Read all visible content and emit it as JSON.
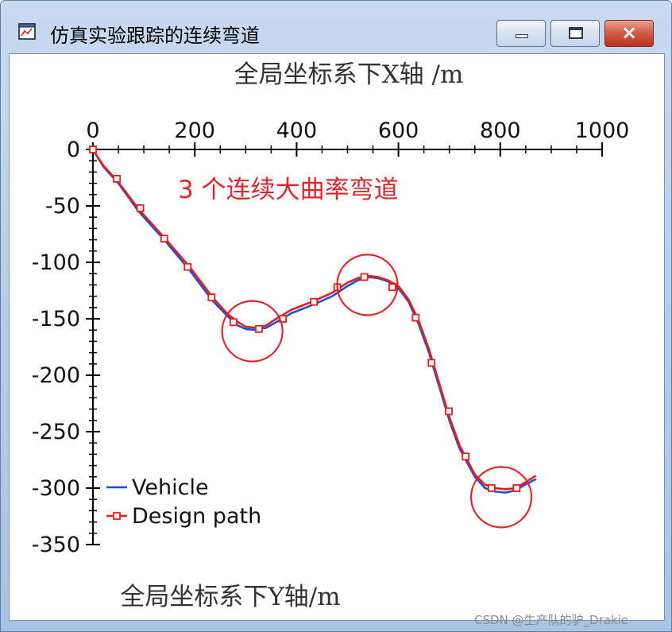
{
  "window": {
    "title": "仿真实验跟踪的连续弯道",
    "icon": "chart-window-icon",
    "controls": {
      "minimize": "minimize-icon",
      "maximize": "maximize-icon",
      "close": "×"
    }
  },
  "watermark": "CSDN @生产队的驴_Drakie",
  "chart_data": {
    "type": "line",
    "title": "",
    "xlabel": "全局坐标系下X轴 /m",
    "ylabel": "全局坐标系下Y轴/m",
    "annotation": "3 个连续大曲率弯道",
    "xlim": [
      0,
      1000
    ],
    "ylim": [
      -350,
      0
    ],
    "x_ticks": [
      0,
      200,
      400,
      600,
      800,
      1000
    ],
    "x_tick_labels": [
      "0",
      "200",
      "400",
      "600",
      "800",
      "1000"
    ],
    "y_ticks": [
      0,
      -50,
      -100,
      -150,
      -200,
      -250,
      -300,
      -350
    ],
    "y_tick_labels": [
      "0",
      "-50",
      "-100",
      "-150",
      "-200",
      "-250",
      "-300",
      "-350"
    ],
    "legend_position": "bottom-left",
    "series": [
      {
        "name": "Vehicle",
        "color": "#1f4fd8",
        "marker": "none",
        "x": [
          0,
          20,
          50,
          90,
          140,
          190,
          235,
          265,
          285,
          300,
          320,
          340,
          360,
          390,
          430,
          470,
          500,
          520,
          540,
          560,
          580,
          600,
          620,
          640,
          660,
          670,
          680,
          700,
          720,
          750,
          770,
          790,
          810,
          830,
          845,
          870
        ],
        "y": [
          0,
          -15,
          -30,
          -55,
          -80,
          -107,
          -134,
          -148,
          -156,
          -159,
          -160,
          -158,
          -153,
          -145,
          -138,
          -130,
          -121,
          -116,
          -113,
          -114,
          -117,
          -123,
          -135,
          -155,
          -180,
          -195,
          -210,
          -240,
          -265,
          -290,
          -300,
          -303,
          -304,
          -302,
          -298,
          -292
        ]
      },
      {
        "name": "Design path",
        "color": "#e81c1c",
        "marker": "square",
        "x": [
          0,
          20,
          50,
          90,
          140,
          190,
          235,
          265,
          285,
          300,
          320,
          340,
          360,
          390,
          430,
          470,
          500,
          520,
          540,
          560,
          580,
          600,
          620,
          640,
          660,
          670,
          680,
          700,
          720,
          750,
          770,
          790,
          810,
          830,
          845,
          870
        ],
        "y": [
          0,
          -14,
          -29,
          -53,
          -78,
          -104,
          -131,
          -146,
          -153,
          -157,
          -158,
          -156,
          -150,
          -142,
          -135,
          -127,
          -118,
          -114,
          -112,
          -113,
          -116,
          -121,
          -133,
          -152,
          -177,
          -192,
          -207,
          -237,
          -262,
          -288,
          -297,
          -300,
          -301,
          -300,
          -296,
          -289
        ],
        "marker_x": [
          0,
          47,
          93,
          140,
          186,
          233,
          276,
          326,
          373,
          434,
          480,
          533,
          588,
          634,
          665,
          699,
          732,
          783,
          832
        ],
        "marker_y": [
          0,
          -26,
          -52,
          -79,
          -104,
          -131,
          -153,
          -159,
          -150,
          -135,
          -122,
          -113,
          -122,
          -149,
          -189,
          -232,
          -272,
          -300,
          -300
        ]
      }
    ],
    "highlights": [
      {
        "x": 313,
        "y": -161,
        "label": ""
      },
      {
        "x": 539,
        "y": -120,
        "label": ""
      },
      {
        "x": 802,
        "y": -308,
        "label": ""
      }
    ]
  }
}
